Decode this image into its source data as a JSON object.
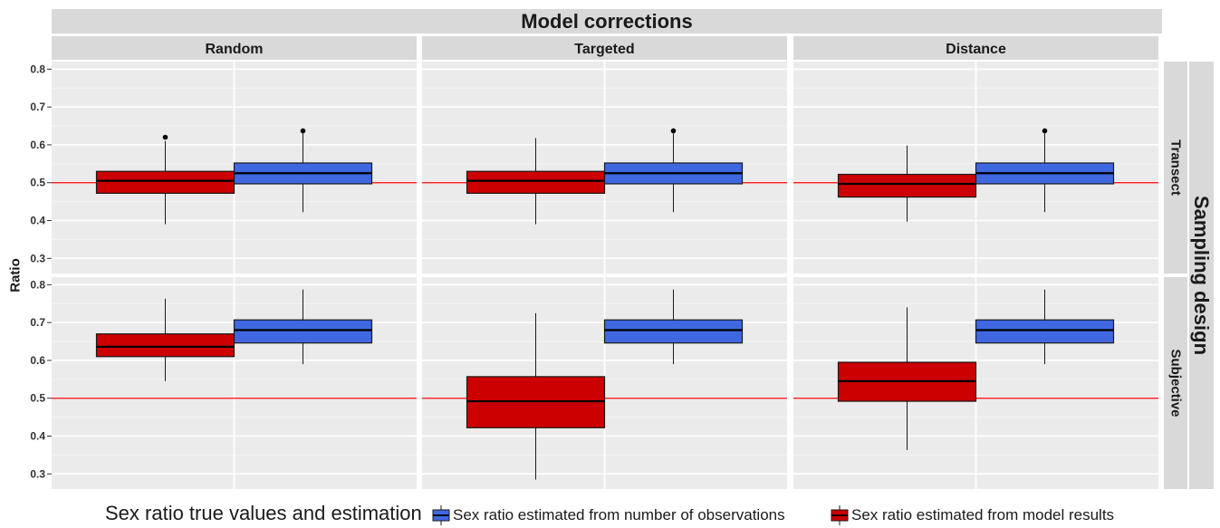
{
  "chart_data": {
    "type": "box",
    "title": "",
    "col_strip_title": "Model corrections",
    "row_strip_title": "Sampling design",
    "ylabel": "Ratio",
    "ylim": [
      0.26,
      0.82
    ],
    "yticks": [
      "0.3",
      "0.4",
      "0.5",
      "0.6",
      "0.7",
      "0.8"
    ],
    "reference_line": 0.5,
    "columns": [
      "Random",
      "Targeted",
      "Distance"
    ],
    "rows": [
      "Transect",
      "Subjective"
    ],
    "legend": {
      "title": "Sex ratio true values and estimation",
      "entries": [
        {
          "key": "obs",
          "label": "Sex ratio estimated from number of observations",
          "color": "#3f67e0"
        },
        {
          "key": "model",
          "label": "Sex ratio estimated from model results",
          "color": "#cc0000"
        }
      ]
    },
    "panels": [
      {
        "row": "Transect",
        "col": "Random",
        "boxes": [
          {
            "series": "model",
            "whisker_low": 0.39,
            "q1": 0.472,
            "median": 0.505,
            "q3": 0.53,
            "whisker_high": 0.61,
            "outliers": [
              0.62
            ]
          },
          {
            "series": "obs",
            "whisker_low": 0.422,
            "q1": 0.497,
            "median": 0.525,
            "q3": 0.552,
            "whisker_high": 0.63,
            "outliers": [
              0.637
            ]
          }
        ]
      },
      {
        "row": "Transect",
        "col": "Targeted",
        "boxes": [
          {
            "series": "model",
            "whisker_low": 0.39,
            "q1": 0.472,
            "median": 0.505,
            "q3": 0.53,
            "whisker_high": 0.618,
            "outliers": []
          },
          {
            "series": "obs",
            "whisker_low": 0.422,
            "q1": 0.497,
            "median": 0.525,
            "q3": 0.552,
            "whisker_high": 0.63,
            "outliers": [
              0.637
            ]
          }
        ]
      },
      {
        "row": "Transect",
        "col": "Distance",
        "boxes": [
          {
            "series": "model",
            "whisker_low": 0.397,
            "q1": 0.462,
            "median": 0.497,
            "q3": 0.522,
            "whisker_high": 0.598,
            "outliers": []
          },
          {
            "series": "obs",
            "whisker_low": 0.422,
            "q1": 0.497,
            "median": 0.525,
            "q3": 0.552,
            "whisker_high": 0.63,
            "outliers": [
              0.637
            ]
          }
        ]
      },
      {
        "row": "Subjective",
        "col": "Random",
        "boxes": [
          {
            "series": "model",
            "whisker_low": 0.545,
            "q1": 0.61,
            "median": 0.636,
            "q3": 0.67,
            "whisker_high": 0.763,
            "outliers": []
          },
          {
            "series": "obs",
            "whisker_low": 0.59,
            "q1": 0.646,
            "median": 0.68,
            "q3": 0.707,
            "whisker_high": 0.787,
            "outliers": []
          }
        ]
      },
      {
        "row": "Subjective",
        "col": "Targeted",
        "boxes": [
          {
            "series": "model",
            "whisker_low": 0.285,
            "q1": 0.422,
            "median": 0.492,
            "q3": 0.557,
            "whisker_high": 0.725,
            "outliers": []
          },
          {
            "series": "obs",
            "whisker_low": 0.59,
            "q1": 0.646,
            "median": 0.68,
            "q3": 0.707,
            "whisker_high": 0.787,
            "outliers": []
          }
        ]
      },
      {
        "row": "Subjective",
        "col": "Distance",
        "boxes": [
          {
            "series": "model",
            "whisker_low": 0.363,
            "q1": 0.492,
            "median": 0.545,
            "q3": 0.595,
            "whisker_high": 0.74,
            "outliers": []
          },
          {
            "series": "obs",
            "whisker_low": 0.59,
            "q1": 0.646,
            "median": 0.68,
            "q3": 0.707,
            "whisker_high": 0.787,
            "outliers": []
          }
        ]
      }
    ]
  }
}
